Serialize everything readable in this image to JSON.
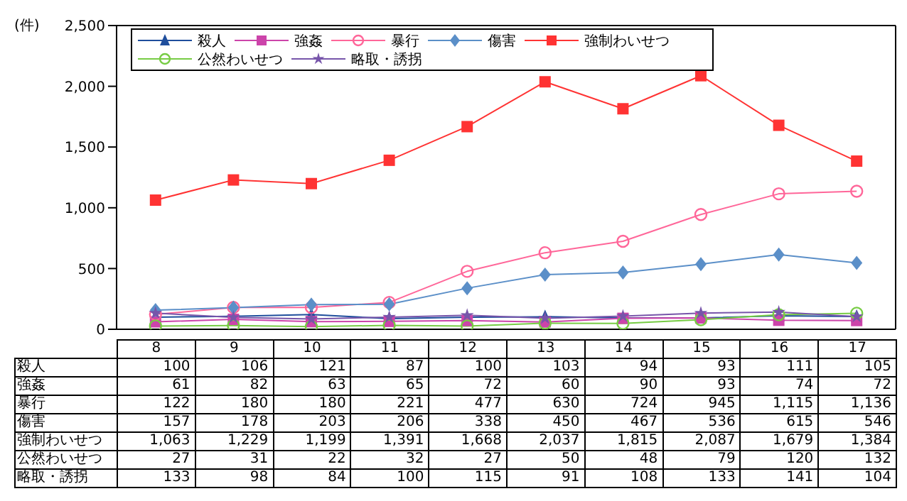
{
  "chart_data": {
    "type": "line",
    "ylabel": "(件)",
    "categories": [
      "8",
      "9",
      "10",
      "11",
      "12",
      "13",
      "14",
      "15",
      "16",
      "17"
    ],
    "ylim": [
      0,
      2500
    ],
    "yticks": [
      0,
      {
        "value": 500,
        "label": "500"
      },
      {
        "value": 1000,
        "label": "1,000"
      },
      {
        "value": 1500,
        "label": "1,500"
      },
      {
        "value": 2000,
        "label": "2,000"
      },
      {
        "value": 2500,
        "label": "2,500"
      }
    ],
    "tick_labels": "y",
    "legend": "top",
    "data_labels": true,
    "series": [
      {
        "name": "殺人",
        "color": "#1f4e9c",
        "marker": "triangle",
        "values": [
          100,
          106,
          121,
          87,
          100,
          103,
          94,
          93,
          111,
          105
        ]
      },
      {
        "name": "強姦",
        "color": "#cc44aa",
        "marker": "square",
        "values": [
          61,
          82,
          63,
          65,
          72,
          60,
          90,
          93,
          74,
          72
        ]
      },
      {
        "name": "暴行",
        "color": "#ff6699",
        "marker": "circle",
        "values": [
          122,
          180,
          180,
          221,
          477,
          630,
          724,
          945,
          1115,
          1136
        ],
        "value_labels": [
          "122",
          "180",
          "180",
          "221",
          "477",
          "630",
          "724",
          "945",
          "1,115",
          "1,136"
        ]
      },
      {
        "name": "傷害",
        "color": "#5b8fc8",
        "marker": "diamond",
        "values": [
          157,
          178,
          203,
          206,
          338,
          450,
          467,
          536,
          615,
          546
        ]
      },
      {
        "name": "強制わいせつ",
        "color": "#ff3333",
        "marker": "square",
        "values": [
          1063,
          1229,
          1199,
          1391,
          1668,
          2037,
          1815,
          2087,
          1679,
          1384
        ],
        "value_labels": [
          "1,063",
          "1,229",
          "1,199",
          "1,391",
          "1,668",
          "2,037",
          "1,815",
          "2,087",
          "1,679",
          "1,384"
        ]
      },
      {
        "name": "公然わいせつ",
        "color": "#77cc44",
        "marker": "circle",
        "values": [
          27,
          31,
          22,
          32,
          27,
          50,
          48,
          79,
          120,
          132
        ]
      },
      {
        "name": "略取・誘拐",
        "color": "#7755aa",
        "marker": "star",
        "values": [
          133,
          98,
          84,
          100,
          115,
          91,
          108,
          133,
          141,
          104
        ]
      }
    ]
  }
}
